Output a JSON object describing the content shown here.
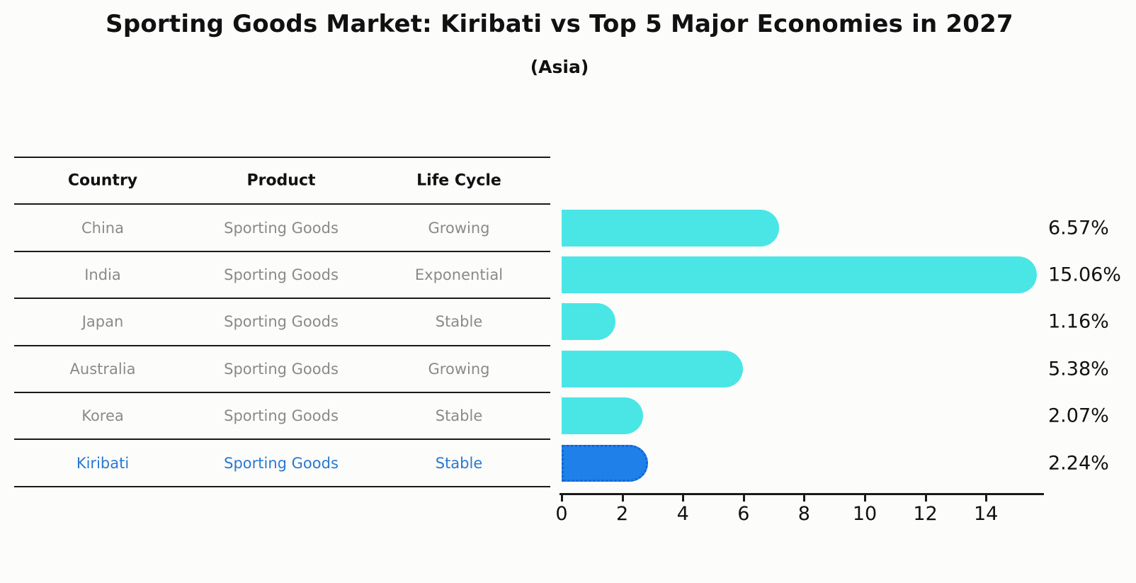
{
  "title": "Sporting Goods Market: Kiribati vs Top 5 Major Economies in 2027",
  "subtitle": "(Asia)",
  "table": {
    "headers": [
      "Country",
      "Product",
      "Life Cycle"
    ],
    "rows": [
      {
        "country": "China",
        "product": "Sporting Goods",
        "life_cycle": "Growing",
        "highlighted": false
      },
      {
        "country": "India",
        "product": "Sporting Goods",
        "life_cycle": "Exponential",
        "highlighted": false
      },
      {
        "country": "Japan",
        "product": "Sporting Goods",
        "life_cycle": "Stable",
        "highlighted": false
      },
      {
        "country": "Australia",
        "product": "Sporting Goods",
        "life_cycle": "Growing",
        "highlighted": false
      },
      {
        "country": "Korea",
        "product": "Sporting Goods",
        "life_cycle": "Stable",
        "highlighted": false
      },
      {
        "country": "Kiribati",
        "product": "Sporting Goods",
        "life_cycle": "Stable",
        "highlighted": true
      }
    ]
  },
  "chart_data": {
    "type": "bar",
    "orientation": "horizontal",
    "title": "Sporting Goods Market: Kiribati vs Top 5 Major Economies in 2027",
    "subtitle": "(Asia)",
    "categories": [
      "China",
      "India",
      "Japan",
      "Australia",
      "Korea",
      "Kiribati"
    ],
    "values": [
      6.57,
      15.06,
      1.16,
      5.38,
      2.07,
      2.24
    ],
    "value_labels": [
      "6.57%",
      "15.06%",
      "1.16%",
      "5.38%",
      "2.07%",
      "2.24%"
    ],
    "xlim": [
      0,
      16
    ],
    "xticks": [
      0,
      2,
      4,
      6,
      8,
      10,
      12,
      14
    ],
    "grid": false,
    "legend": "none",
    "highlight_category": "Kiribati",
    "colors": {
      "bar": "#4ae6e6",
      "highlight_bar": "#1e80e8",
      "highlight_border": "#1464d2",
      "highlight_text": "#2979d1",
      "row_text": "#8a8a8a",
      "header_text": "#111111",
      "axis": "#1a1a1a"
    }
  }
}
